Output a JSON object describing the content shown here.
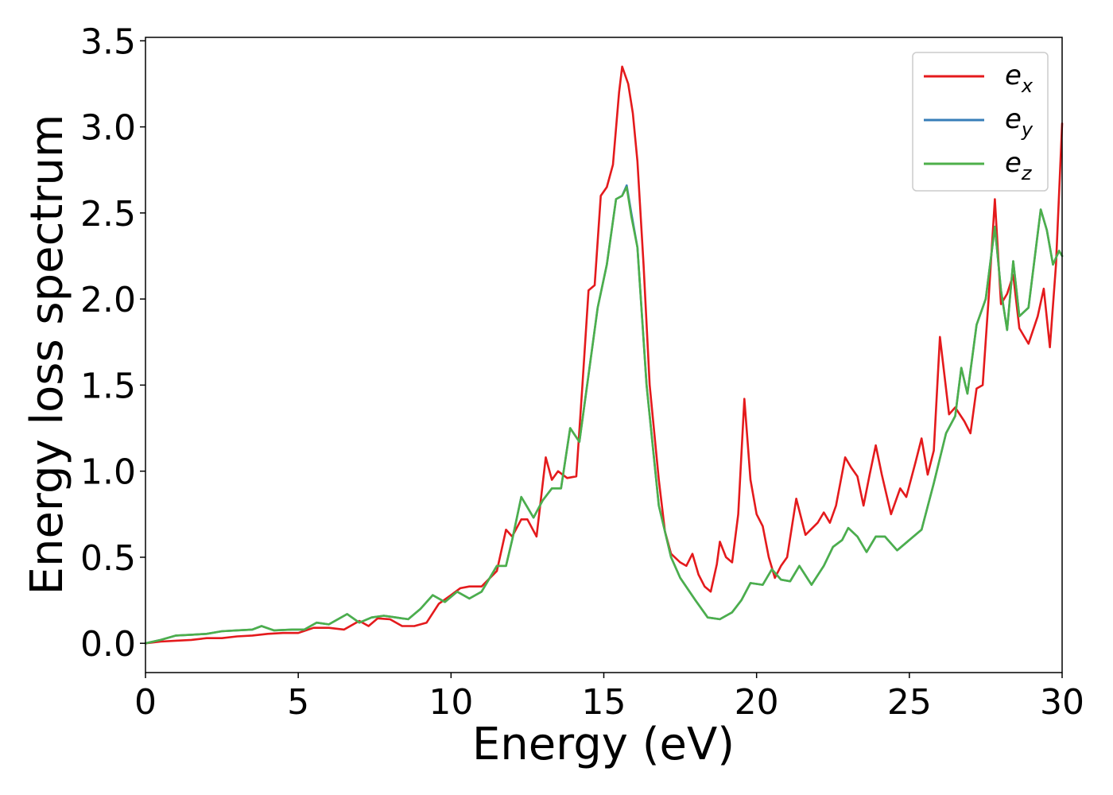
{
  "chart_data": {
    "type": "line",
    "title": "",
    "xlabel": "Energy (eV)",
    "ylabel": "Energy loss spectrum",
    "xlim": [
      0,
      30
    ],
    "ylim": [
      -0.17,
      3.52
    ],
    "xticks": [
      "0",
      "5",
      "10",
      "15",
      "20",
      "25",
      "30"
    ],
    "yticks": [
      "0.0",
      "0.5",
      "1.0",
      "1.5",
      "2.0",
      "2.5",
      "3.0",
      "3.5"
    ],
    "grid": false,
    "legend": "top-right",
    "series": [
      {
        "name": "e_x",
        "base": "e",
        "sub": "x",
        "color": "#e41a1c",
        "points": [
          [
            0.0,
            0.0
          ],
          [
            0.5,
            0.01
          ],
          [
            1.0,
            0.015
          ],
          [
            1.5,
            0.02
          ],
          [
            2.0,
            0.03
          ],
          [
            2.5,
            0.03
          ],
          [
            3.0,
            0.04
          ],
          [
            3.5,
            0.045
          ],
          [
            4.0,
            0.055
          ],
          [
            4.5,
            0.06
          ],
          [
            5.0,
            0.06
          ],
          [
            5.5,
            0.09
          ],
          [
            6.0,
            0.09
          ],
          [
            6.5,
            0.08
          ],
          [
            7.0,
            0.13
          ],
          [
            7.3,
            0.1
          ],
          [
            7.6,
            0.145
          ],
          [
            8.0,
            0.14
          ],
          [
            8.4,
            0.1
          ],
          [
            8.8,
            0.1
          ],
          [
            9.2,
            0.12
          ],
          [
            9.6,
            0.23
          ],
          [
            10.0,
            0.28
          ],
          [
            10.3,
            0.32
          ],
          [
            10.6,
            0.33
          ],
          [
            11.0,
            0.33
          ],
          [
            11.5,
            0.42
          ],
          [
            11.8,
            0.66
          ],
          [
            12.0,
            0.62
          ],
          [
            12.3,
            0.72
          ],
          [
            12.5,
            0.72
          ],
          [
            12.8,
            0.62
          ],
          [
            13.1,
            1.08
          ],
          [
            13.3,
            0.95
          ],
          [
            13.5,
            1.0
          ],
          [
            13.8,
            0.96
          ],
          [
            14.1,
            0.97
          ],
          [
            14.3,
            1.5
          ],
          [
            14.5,
            2.05
          ],
          [
            14.7,
            2.08
          ],
          [
            14.9,
            2.6
          ],
          [
            15.1,
            2.65
          ],
          [
            15.3,
            2.78
          ],
          [
            15.5,
            3.2
          ],
          [
            15.6,
            3.35
          ],
          [
            15.8,
            3.25
          ],
          [
            15.95,
            3.08
          ],
          [
            16.1,
            2.8
          ],
          [
            16.3,
            2.2
          ],
          [
            16.5,
            1.5
          ],
          [
            16.8,
            0.95
          ],
          [
            17.0,
            0.65
          ],
          [
            17.2,
            0.52
          ],
          [
            17.5,
            0.47
          ],
          [
            17.7,
            0.45
          ],
          [
            17.9,
            0.52
          ],
          [
            18.1,
            0.4
          ],
          [
            18.3,
            0.33
          ],
          [
            18.5,
            0.3
          ],
          [
            18.7,
            0.46
          ],
          [
            18.8,
            0.59
          ],
          [
            19.0,
            0.5
          ],
          [
            19.2,
            0.47
          ],
          [
            19.4,
            0.75
          ],
          [
            19.6,
            1.42
          ],
          [
            19.8,
            0.95
          ],
          [
            20.0,
            0.75
          ],
          [
            20.2,
            0.68
          ],
          [
            20.4,
            0.5
          ],
          [
            20.6,
            0.38
          ],
          [
            20.8,
            0.45
          ],
          [
            21.0,
            0.5
          ],
          [
            21.3,
            0.84
          ],
          [
            21.6,
            0.63
          ],
          [
            22.0,
            0.7
          ],
          [
            22.2,
            0.76
          ],
          [
            22.4,
            0.7
          ],
          [
            22.6,
            0.8
          ],
          [
            22.9,
            1.08
          ],
          [
            23.1,
            1.02
          ],
          [
            23.3,
            0.97
          ],
          [
            23.5,
            0.8
          ],
          [
            23.7,
            0.98
          ],
          [
            23.9,
            1.15
          ],
          [
            24.1,
            0.98
          ],
          [
            24.4,
            0.75
          ],
          [
            24.7,
            0.9
          ],
          [
            24.9,
            0.85
          ],
          [
            25.2,
            1.05
          ],
          [
            25.4,
            1.19
          ],
          [
            25.6,
            0.98
          ],
          [
            25.8,
            1.12
          ],
          [
            26.0,
            1.78
          ],
          [
            26.3,
            1.33
          ],
          [
            26.5,
            1.37
          ],
          [
            26.8,
            1.29
          ],
          [
            27.0,
            1.22
          ],
          [
            27.2,
            1.48
          ],
          [
            27.4,
            1.5
          ],
          [
            27.6,
            2.02
          ],
          [
            27.8,
            2.58
          ],
          [
            28.0,
            1.97
          ],
          [
            28.2,
            2.03
          ],
          [
            28.4,
            2.14
          ],
          [
            28.6,
            1.83
          ],
          [
            28.9,
            1.74
          ],
          [
            29.2,
            1.9
          ],
          [
            29.4,
            2.06
          ],
          [
            29.6,
            1.72
          ],
          [
            29.8,
            2.2
          ],
          [
            30.0,
            3.02
          ]
        ]
      },
      {
        "name": "e_y",
        "base": "e",
        "sub": "y",
        "color": "#377eb8",
        "points": [
          [
            0.0,
            0.0
          ],
          [
            0.5,
            0.02
          ],
          [
            1.0,
            0.045
          ],
          [
            1.5,
            0.05
          ],
          [
            2.0,
            0.055
          ],
          [
            2.5,
            0.07
          ],
          [
            3.0,
            0.075
          ],
          [
            3.5,
            0.08
          ],
          [
            3.8,
            0.1
          ],
          [
            4.2,
            0.075
          ],
          [
            4.8,
            0.08
          ],
          [
            5.2,
            0.08
          ],
          [
            5.6,
            0.12
          ],
          [
            6.0,
            0.11
          ],
          [
            6.6,
            0.17
          ],
          [
            7.0,
            0.12
          ],
          [
            7.4,
            0.15
          ],
          [
            7.8,
            0.16
          ],
          [
            8.2,
            0.15
          ],
          [
            8.6,
            0.14
          ],
          [
            9.0,
            0.2
          ],
          [
            9.4,
            0.28
          ],
          [
            9.8,
            0.24
          ],
          [
            10.2,
            0.3
          ],
          [
            10.6,
            0.26
          ],
          [
            11.0,
            0.3
          ],
          [
            11.5,
            0.45
          ],
          [
            11.8,
            0.45
          ],
          [
            12.0,
            0.6
          ],
          [
            12.3,
            0.85
          ],
          [
            12.7,
            0.73
          ],
          [
            13.0,
            0.83
          ],
          [
            13.3,
            0.9
          ],
          [
            13.6,
            0.9
          ],
          [
            13.9,
            1.25
          ],
          [
            14.2,
            1.17
          ],
          [
            14.5,
            1.56
          ],
          [
            14.8,
            1.95
          ],
          [
            15.1,
            2.2
          ],
          [
            15.4,
            2.58
          ],
          [
            15.6,
            2.6
          ],
          [
            15.75,
            2.66
          ],
          [
            15.9,
            2.5
          ],
          [
            16.1,
            2.3
          ],
          [
            16.4,
            1.5
          ],
          [
            16.8,
            0.8
          ],
          [
            17.2,
            0.5
          ],
          [
            17.5,
            0.38
          ],
          [
            18.0,
            0.25
          ],
          [
            18.4,
            0.15
          ],
          [
            18.8,
            0.14
          ],
          [
            19.2,
            0.18
          ],
          [
            19.5,
            0.25
          ],
          [
            19.8,
            0.35
          ],
          [
            20.2,
            0.34
          ],
          [
            20.5,
            0.43
          ],
          [
            20.8,
            0.37
          ],
          [
            21.1,
            0.36
          ],
          [
            21.4,
            0.45
          ],
          [
            21.8,
            0.34
          ],
          [
            22.2,
            0.45
          ],
          [
            22.5,
            0.56
          ],
          [
            22.8,
            0.6
          ],
          [
            23.0,
            0.67
          ],
          [
            23.3,
            0.62
          ],
          [
            23.6,
            0.53
          ],
          [
            23.9,
            0.62
          ],
          [
            24.2,
            0.62
          ],
          [
            24.6,
            0.54
          ],
          [
            25.0,
            0.6
          ],
          [
            25.4,
            0.66
          ],
          [
            25.8,
            0.93
          ],
          [
            26.2,
            1.22
          ],
          [
            26.5,
            1.32
          ],
          [
            26.7,
            1.6
          ],
          [
            26.9,
            1.45
          ],
          [
            27.2,
            1.85
          ],
          [
            27.5,
            2.0
          ],
          [
            27.8,
            2.42
          ],
          [
            28.0,
            2.05
          ],
          [
            28.2,
            1.82
          ],
          [
            28.4,
            2.22
          ],
          [
            28.6,
            1.9
          ],
          [
            28.9,
            1.95
          ],
          [
            29.3,
            2.52
          ],
          [
            29.5,
            2.4
          ],
          [
            29.7,
            2.2
          ],
          [
            29.9,
            2.28
          ],
          [
            30.0,
            2.25
          ]
        ]
      },
      {
        "name": "e_z",
        "base": "e",
        "sub": "z",
        "color": "#4daf4a",
        "points": [
          [
            0.0,
            0.0
          ],
          [
            0.5,
            0.02
          ],
          [
            1.0,
            0.045
          ],
          [
            1.5,
            0.05
          ],
          [
            2.0,
            0.055
          ],
          [
            2.5,
            0.07
          ],
          [
            3.0,
            0.075
          ],
          [
            3.5,
            0.08
          ],
          [
            3.8,
            0.1
          ],
          [
            4.2,
            0.075
          ],
          [
            4.8,
            0.08
          ],
          [
            5.2,
            0.08
          ],
          [
            5.6,
            0.12
          ],
          [
            6.0,
            0.11
          ],
          [
            6.6,
            0.17
          ],
          [
            7.0,
            0.12
          ],
          [
            7.4,
            0.15
          ],
          [
            7.8,
            0.16
          ],
          [
            8.2,
            0.15
          ],
          [
            8.6,
            0.14
          ],
          [
            9.0,
            0.2
          ],
          [
            9.4,
            0.28
          ],
          [
            9.8,
            0.24
          ],
          [
            10.2,
            0.3
          ],
          [
            10.6,
            0.26
          ],
          [
            11.0,
            0.3
          ],
          [
            11.5,
            0.45
          ],
          [
            11.8,
            0.45
          ],
          [
            12.0,
            0.6
          ],
          [
            12.3,
            0.85
          ],
          [
            12.7,
            0.73
          ],
          [
            13.0,
            0.83
          ],
          [
            13.3,
            0.9
          ],
          [
            13.6,
            0.9
          ],
          [
            13.9,
            1.25
          ],
          [
            14.2,
            1.17
          ],
          [
            14.5,
            1.56
          ],
          [
            14.8,
            1.95
          ],
          [
            15.1,
            2.2
          ],
          [
            15.4,
            2.58
          ],
          [
            15.6,
            2.6
          ],
          [
            15.75,
            2.65
          ],
          [
            15.9,
            2.48
          ],
          [
            16.1,
            2.3
          ],
          [
            16.4,
            1.5
          ],
          [
            16.8,
            0.8
          ],
          [
            17.2,
            0.5
          ],
          [
            17.5,
            0.38
          ],
          [
            18.0,
            0.25
          ],
          [
            18.4,
            0.15
          ],
          [
            18.8,
            0.14
          ],
          [
            19.2,
            0.18
          ],
          [
            19.5,
            0.25
          ],
          [
            19.8,
            0.35
          ],
          [
            20.2,
            0.34
          ],
          [
            20.5,
            0.43
          ],
          [
            20.8,
            0.37
          ],
          [
            21.1,
            0.36
          ],
          [
            21.4,
            0.45
          ],
          [
            21.8,
            0.34
          ],
          [
            22.2,
            0.45
          ],
          [
            22.5,
            0.56
          ],
          [
            22.8,
            0.6
          ],
          [
            23.0,
            0.67
          ],
          [
            23.3,
            0.62
          ],
          [
            23.6,
            0.53
          ],
          [
            23.9,
            0.62
          ],
          [
            24.2,
            0.62
          ],
          [
            24.6,
            0.54
          ],
          [
            25.0,
            0.6
          ],
          [
            25.4,
            0.66
          ],
          [
            25.8,
            0.93
          ],
          [
            26.2,
            1.22
          ],
          [
            26.5,
            1.32
          ],
          [
            26.7,
            1.6
          ],
          [
            26.9,
            1.45
          ],
          [
            27.2,
            1.85
          ],
          [
            27.5,
            2.0
          ],
          [
            27.8,
            2.42
          ],
          [
            28.0,
            2.05
          ],
          [
            28.2,
            1.82
          ],
          [
            28.4,
            2.22
          ],
          [
            28.6,
            1.9
          ],
          [
            28.9,
            1.95
          ],
          [
            29.3,
            2.52
          ],
          [
            29.5,
            2.4
          ],
          [
            29.7,
            2.2
          ],
          [
            29.9,
            2.28
          ],
          [
            30.0,
            2.25
          ]
        ]
      }
    ]
  }
}
